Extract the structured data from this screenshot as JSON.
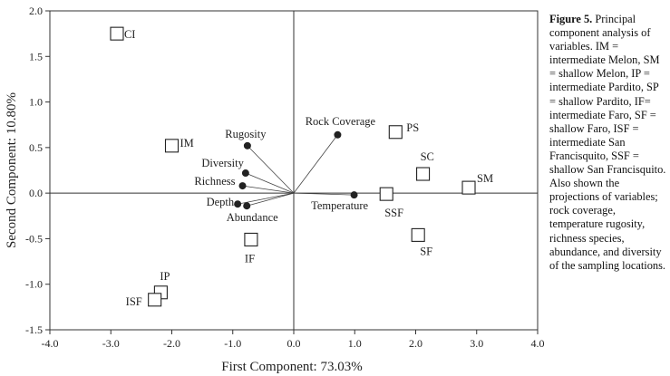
{
  "chart_data": {
    "type": "scatter",
    "xlabel": "First Component: 73.03%",
    "ylabel": "Second Component: 10.80%",
    "xlim": [
      -4.0,
      4.0
    ],
    "ylim": [
      -1.5,
      2.0
    ],
    "xticks": [
      -4.0,
      -3.0,
      -2.0,
      -1.0,
      0.0,
      1.0,
      2.0,
      3.0,
      4.0
    ],
    "yticks": [
      -1.5,
      -1.0,
      -0.5,
      0.0,
      0.5,
      1.0,
      1.5,
      2.0
    ],
    "grid": false,
    "sites": [
      {
        "name": "CI",
        "x": -2.9,
        "y": 1.75
      },
      {
        "name": "IM",
        "x": -2.0,
        "y": 0.52
      },
      {
        "name": "PS",
        "x": 1.67,
        "y": 0.67
      },
      {
        "name": "SC",
        "x": 2.12,
        "y": 0.21
      },
      {
        "name": "SM",
        "x": 2.87,
        "y": 0.06
      },
      {
        "name": "SSF",
        "x": 1.52,
        "y": -0.01
      },
      {
        "name": "SF",
        "x": 2.04,
        "y": -0.46
      },
      {
        "name": "IF",
        "x": -0.7,
        "y": -0.51
      },
      {
        "name": "IP",
        "x": -2.18,
        "y": -1.09
      },
      {
        "name": "ISF",
        "x": -2.28,
        "y": -1.17
      }
    ],
    "variables": [
      {
        "name": "Rock Coverage",
        "x": 0.72,
        "y": 0.64
      },
      {
        "name": "Rugosity",
        "x": -0.76,
        "y": 0.52
      },
      {
        "name": "Diversity",
        "x": -0.79,
        "y": 0.22
      },
      {
        "name": "Richness",
        "x": -0.84,
        "y": 0.08
      },
      {
        "name": "Depth",
        "x": -0.92,
        "y": -0.12
      },
      {
        "name": "Abundance",
        "x": -0.77,
        "y": -0.14
      },
      {
        "name": "Temperature",
        "x": 0.99,
        "y": -0.02
      }
    ]
  },
  "caption": {
    "label": "Figure 5.",
    "text": "Principal component analysis of variables. IM = intermediate Melon, SM = shallow Melon, IP = intermediate Pardito, SP = shallow Pardito, IF= intermediate Faro, SF = shallow Faro, ISF = intermediate San Francisquito, SSF = shallow San Francisquito. Also shown the projections of variables; rock coverage, temperature rugosity, richness species, abundance, and diversity of the sampling locations."
  }
}
